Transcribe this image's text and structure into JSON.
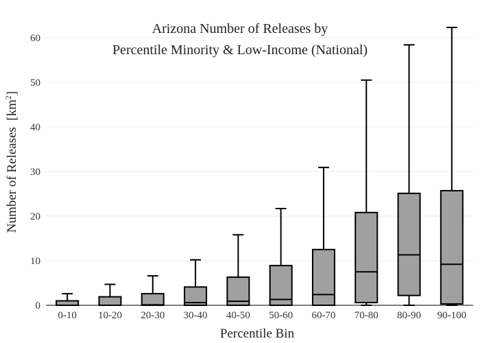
{
  "chart_data": {
    "type": "box",
    "title_lines": [
      "Arizona Number of Releases by",
      "Percentile Minority & Low-Income (National)"
    ],
    "xlabel": "Percentile Bin",
    "ylabel_main": "Number of Releases",
    "ylabel_unit_open": "[km",
    "ylabel_unit_sup": "2",
    "ylabel_unit_close": "]",
    "ylim": [
      0,
      65
    ],
    "yticks": [
      0,
      10,
      20,
      30,
      40,
      50,
      60
    ],
    "grid": true,
    "categories": [
      "0-10",
      "10-20",
      "20-30",
      "30-40",
      "40-50",
      "50-60",
      "60-70",
      "70-80",
      "80-90",
      "90-100"
    ],
    "boxes": [
      {
        "min": 0,
        "q1": 0,
        "median": 0,
        "q3": 1.0,
        "max": 2.6
      },
      {
        "min": 0,
        "q1": 0,
        "median": 0,
        "q3": 1.9,
        "max": 4.7
      },
      {
        "min": 0,
        "q1": 0,
        "median": 0.1,
        "q3": 2.6,
        "max": 6.6
      },
      {
        "min": 0,
        "q1": 0,
        "median": 0.6,
        "q3": 4.1,
        "max": 10.2
      },
      {
        "min": 0,
        "q1": 0,
        "median": 0.9,
        "q3": 6.3,
        "max": 15.8
      },
      {
        "min": 0,
        "q1": 0,
        "median": 1.3,
        "q3": 8.9,
        "max": 21.7
      },
      {
        "min": 0,
        "q1": 0,
        "median": 2.4,
        "q3": 12.5,
        "max": 30.9
      },
      {
        "min": 0,
        "q1": 0.6,
        "median": 7.5,
        "q3": 20.8,
        "max": 50.5
      },
      {
        "min": 0,
        "q1": 2.2,
        "median": 11.3,
        "q3": 25.1,
        "max": 58.4
      },
      {
        "min": 0,
        "q1": 0.3,
        "median": 9.2,
        "q3": 25.7,
        "max": 62.3
      }
    ],
    "box_fill": "#a0a0a0",
    "stroke_color": "#000000",
    "grid_color": "#eeeeee"
  }
}
